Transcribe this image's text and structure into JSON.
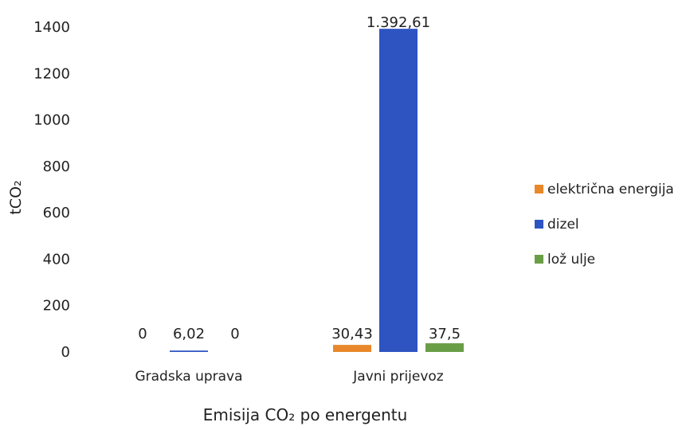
{
  "chart_data": {
    "type": "bar",
    "title": "",
    "xlabel": "Emisija CO₂ po energentu",
    "ylabel": "tCO₂",
    "categories": [
      "Gradska uprava",
      "Javni prijevoz"
    ],
    "series": [
      {
        "name": "električna energija",
        "color": "#E8882A",
        "values": [
          0,
          30.43
        ],
        "labels": [
          "0",
          "30,43"
        ]
      },
      {
        "name": "dizel",
        "color": "#2E54C2",
        "values": [
          6.02,
          1392.61
        ],
        "labels": [
          "6,02",
          "1.392,61"
        ]
      },
      {
        "name": "lož ulje",
        "color": "#6A9E46",
        "values": [
          0,
          37.5
        ],
        "labels": [
          "0",
          "37,5"
        ]
      }
    ],
    "ylim": [
      0,
      1400
    ],
    "yticks": [
      0,
      200,
      400,
      600,
      800,
      1000,
      1200,
      1400
    ],
    "grid": false,
    "legend_position": "right"
  }
}
